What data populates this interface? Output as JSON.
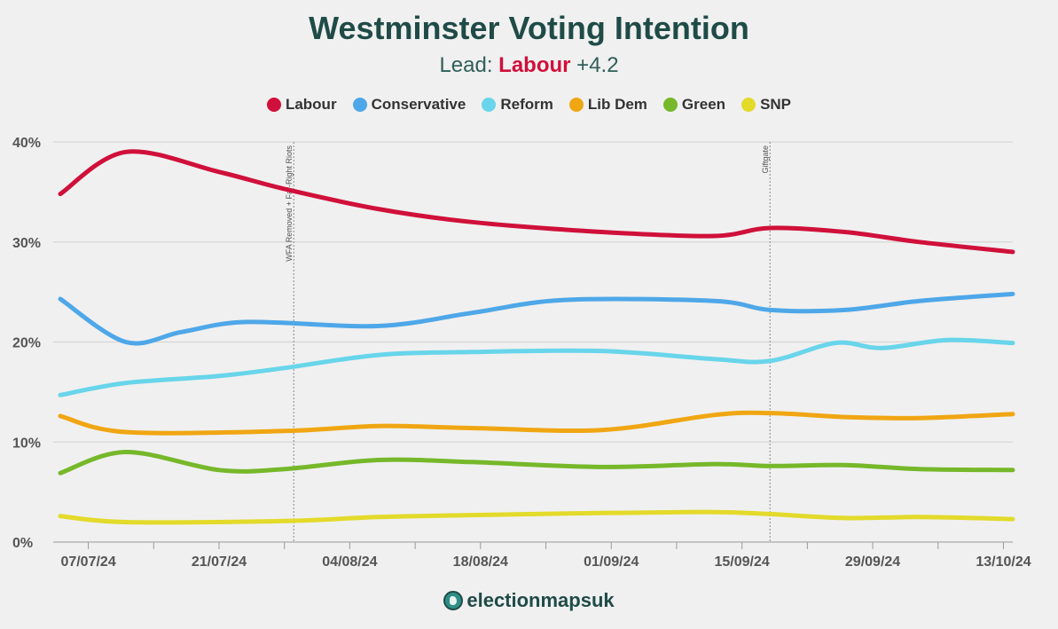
{
  "title": "Westminster Voting Intention",
  "subtitle": {
    "prefix": "Lead:",
    "party": "Labour",
    "value": "+4.2"
  },
  "logo": {
    "text": "electionmapsuk",
    "icon": "globe-icon"
  },
  "chart_data": {
    "type": "line",
    "title": "Westminster Voting Intention",
    "xlabel": "",
    "ylabel": "",
    "ylim": [
      0,
      40
    ],
    "yticks": [
      0,
      10,
      20,
      30,
      40
    ],
    "ytick_labels": [
      "0%",
      "10%",
      "20%",
      "30%",
      "40%"
    ],
    "x_days_range": [
      0,
      102
    ],
    "x_start_date": "04/07/24",
    "xticks": [
      {
        "label": "07/07/24",
        "day": 3
      },
      {
        "label": "21/07/24",
        "day": 17
      },
      {
        "label": "04/08/24",
        "day": 31
      },
      {
        "label": "18/08/24",
        "day": 45
      },
      {
        "label": "01/09/24",
        "day": 59
      },
      {
        "label": "15/09/24",
        "day": 73
      },
      {
        "label": "29/09/24",
        "day": 87
      },
      {
        "label": "13/10/24",
        "day": 101
      }
    ],
    "minor_xticks": [
      10,
      24,
      38,
      52,
      66,
      80,
      94
    ],
    "events": [
      {
        "label": "WFA Removed + Far-Right Riots",
        "day": 25
      },
      {
        "label": "Giftgate",
        "day": 76
      }
    ],
    "legend_position": "top-center",
    "grid": true,
    "series": [
      {
        "name": "Labour",
        "color": "#d0103a",
        "points": [
          [
            0,
            34.8
          ],
          [
            7,
            39.0
          ],
          [
            17,
            37.0
          ],
          [
            24,
            35.3
          ],
          [
            34,
            33.3
          ],
          [
            44,
            32.0
          ],
          [
            58,
            31.0
          ],
          [
            70,
            30.6
          ],
          [
            76,
            31.4
          ],
          [
            84,
            31.0
          ],
          [
            92,
            30.0
          ],
          [
            102,
            29.0
          ]
        ]
      },
      {
        "name": "Conservative",
        "color": "#4ea7e8",
        "points": [
          [
            0,
            24.3
          ],
          [
            7,
            20.0
          ],
          [
            13,
            21.0
          ],
          [
            20,
            22.0
          ],
          [
            34,
            21.6
          ],
          [
            44,
            22.9
          ],
          [
            54,
            24.2
          ],
          [
            70,
            24.1
          ],
          [
            76,
            23.2
          ],
          [
            84,
            23.2
          ],
          [
            92,
            24.1
          ],
          [
            102,
            24.8
          ]
        ]
      },
      {
        "name": "Reform",
        "color": "#68d5ea",
        "points": [
          [
            0,
            14.7
          ],
          [
            7,
            15.9
          ],
          [
            17,
            16.6
          ],
          [
            24,
            17.4
          ],
          [
            34,
            18.7
          ],
          [
            44,
            19.0
          ],
          [
            58,
            19.1
          ],
          [
            70,
            18.3
          ],
          [
            76,
            18.1
          ],
          [
            83,
            19.9
          ],
          [
            88,
            19.4
          ],
          [
            95,
            20.2
          ],
          [
            102,
            19.9
          ]
        ]
      },
      {
        "name": "Lib Dem",
        "color": "#f0a613",
        "points": [
          [
            0,
            12.6
          ],
          [
            7,
            11.0
          ],
          [
            24,
            11.1
          ],
          [
            34,
            11.6
          ],
          [
            44,
            11.4
          ],
          [
            58,
            11.2
          ],
          [
            70,
            12.7
          ],
          [
            76,
            12.9
          ],
          [
            84,
            12.5
          ],
          [
            92,
            12.4
          ],
          [
            102,
            12.8
          ]
        ]
      },
      {
        "name": "Green",
        "color": "#76b82a",
        "points": [
          [
            0,
            6.9
          ],
          [
            7,
            9.0
          ],
          [
            17,
            7.2
          ],
          [
            24,
            7.3
          ],
          [
            34,
            8.2
          ],
          [
            44,
            8.0
          ],
          [
            58,
            7.5
          ],
          [
            70,
            7.8
          ],
          [
            76,
            7.6
          ],
          [
            84,
            7.7
          ],
          [
            92,
            7.3
          ],
          [
            102,
            7.2
          ]
        ]
      },
      {
        "name": "SNP",
        "color": "#e3da2a",
        "points": [
          [
            0,
            2.6
          ],
          [
            7,
            2.0
          ],
          [
            24,
            2.1
          ],
          [
            34,
            2.5
          ],
          [
            44,
            2.7
          ],
          [
            58,
            2.9
          ],
          [
            70,
            3.0
          ],
          [
            76,
            2.8
          ],
          [
            84,
            2.4
          ],
          [
            92,
            2.5
          ],
          [
            102,
            2.3
          ]
        ]
      }
    ]
  }
}
